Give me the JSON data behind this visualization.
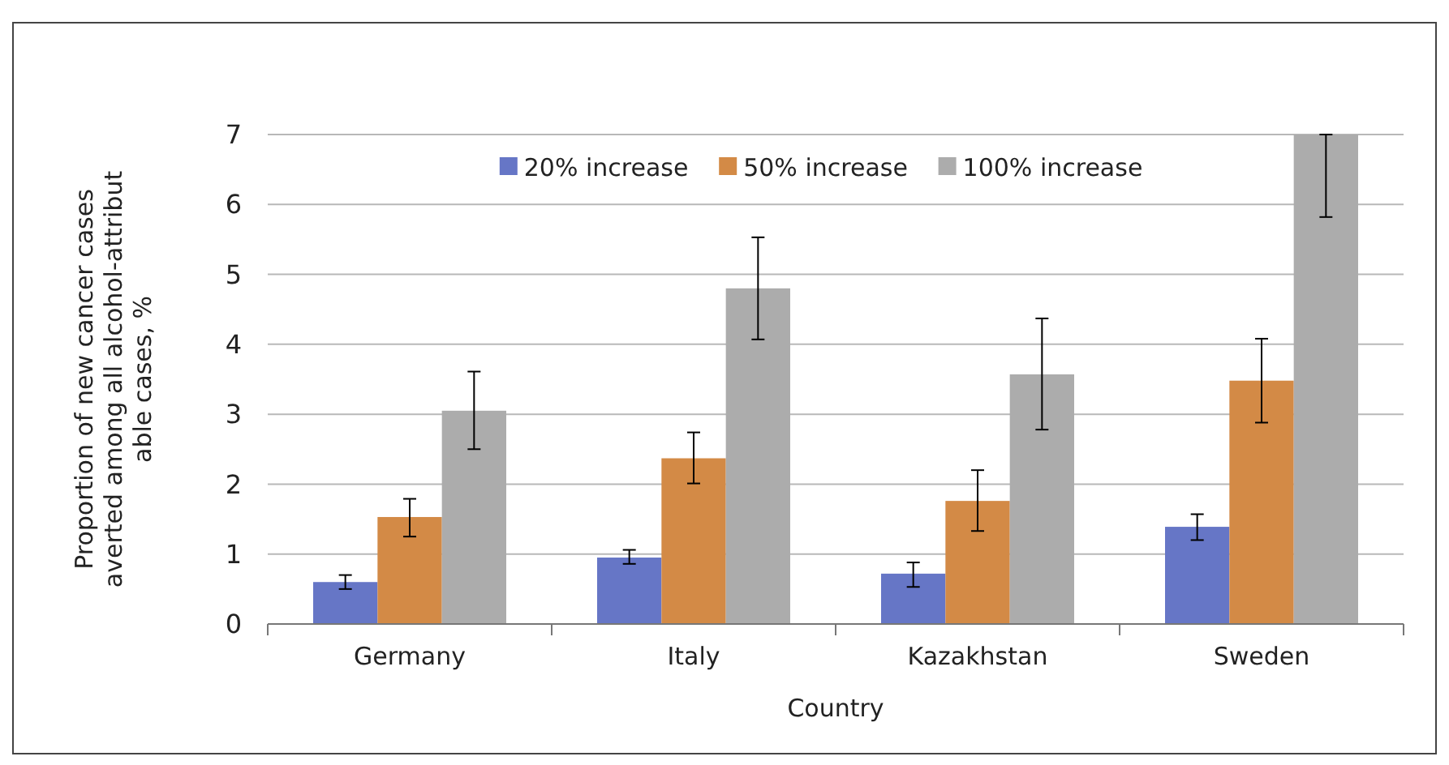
{
  "chart_data": {
    "type": "bar",
    "xlabel": "Country",
    "ylabel": "Proportion of new cancer cases averted among all alcohol-attribut able cases, %",
    "categories": [
      "Germany",
      "Italy",
      "Kazakhstan",
      "Sweden"
    ],
    "series": [
      {
        "name": "20% increase",
        "color": "#6676c6",
        "values": [
          0.6,
          0.95,
          0.72,
          1.39
        ],
        "errors": [
          [
            0.5,
            0.7
          ],
          [
            0.86,
            1.06
          ],
          [
            0.53,
            0.88
          ],
          [
            1.2,
            1.57
          ]
        ]
      },
      {
        "name": "50% increase",
        "color": "#d38a46",
        "values": [
          1.53,
          2.37,
          1.76,
          3.48
        ],
        "errors": [
          [
            1.25,
            1.79
          ],
          [
            2.01,
            2.74
          ],
          [
            1.33,
            2.2
          ],
          [
            2.88,
            4.08
          ]
        ]
      },
      {
        "name": "100% increase",
        "color": "#acacac",
        "values": [
          3.05,
          4.8,
          3.57,
          7.0
        ],
        "errors": [
          [
            2.5,
            3.61
          ],
          [
            4.07,
            5.53
          ],
          [
            2.78,
            4.37
          ],
          [
            5.82,
            7.0
          ]
        ]
      }
    ],
    "ylim": [
      0,
      7
    ],
    "yticks": [
      0,
      1,
      2,
      3,
      4,
      5,
      6,
      7
    ],
    "grid": "y",
    "legend": "top"
  }
}
